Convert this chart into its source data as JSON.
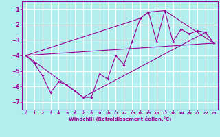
{
  "xlabel": "Windchill (Refroidissement éolien,°C)",
  "bg_color": "#b2eeee",
  "grid_color": "#ffffff",
  "line_color": "#990099",
  "xlim": [
    -0.5,
    23.5
  ],
  "ylim": [
    -7.5,
    -0.5
  ],
  "yticks": [
    -7,
    -6,
    -5,
    -4,
    -3,
    -2,
    -1
  ],
  "xticks": [
    0,
    1,
    2,
    3,
    4,
    5,
    6,
    7,
    8,
    9,
    10,
    11,
    12,
    13,
    14,
    15,
    16,
    17,
    18,
    19,
    20,
    21,
    22,
    23
  ],
  "line1_x": [
    0,
    1,
    2,
    3,
    4,
    5,
    6,
    7,
    8,
    9,
    10,
    11,
    12,
    13,
    14,
    15,
    16,
    17,
    18,
    19,
    20,
    21,
    22,
    23
  ],
  "line1_y": [
    -4.0,
    -4.5,
    -5.3,
    -6.4,
    -5.7,
    -5.9,
    -6.3,
    -6.7,
    -6.7,
    -5.2,
    -5.5,
    -4.0,
    -4.6,
    -3.1,
    -1.6,
    -1.2,
    -3.1,
    -1.1,
    -3.1,
    -2.3,
    -2.6,
    -2.4,
    -2.5,
    -3.2
  ],
  "line2_x": [
    0,
    23
  ],
  "line2_y": [
    -4.0,
    -3.2
  ],
  "envelope_x": [
    0,
    14,
    15,
    17,
    23,
    22,
    7,
    0
  ],
  "envelope_y": [
    -4.0,
    -1.6,
    -1.2,
    -1.1,
    -3.2,
    -2.5,
    -6.7,
    -4.0
  ]
}
